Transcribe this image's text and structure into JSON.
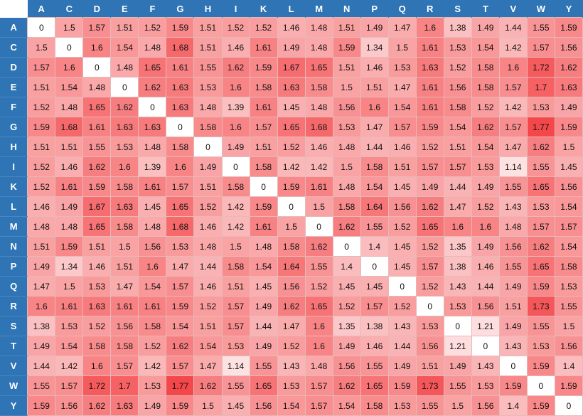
{
  "chart_data": {
    "type": "heatmap",
    "title": "",
    "xlabel": "",
    "ylabel": "",
    "row_labels": [
      "A",
      "C",
      "D",
      "E",
      "F",
      "G",
      "H",
      "I",
      "K",
      "L",
      "M",
      "N",
      "P",
      "Q",
      "R",
      "S",
      "T",
      "V",
      "W",
      "Y"
    ],
    "col_labels": [
      "A",
      "C",
      "D",
      "E",
      "F",
      "G",
      "H",
      "I",
      "K",
      "L",
      "M",
      "N",
      "P",
      "Q",
      "R",
      "S",
      "T",
      "V",
      "W",
      "Y"
    ],
    "values": [
      [
        0,
        1.5,
        1.57,
        1.51,
        1.52,
        1.59,
        1.51,
        1.52,
        1.52,
        1.46,
        1.48,
        1.51,
        1.49,
        1.47,
        1.6,
        1.38,
        1.49,
        1.44,
        1.55,
        1.59
      ],
      [
        1.5,
        0,
        1.6,
        1.54,
        1.48,
        1.68,
        1.51,
        1.46,
        1.61,
        1.49,
        1.48,
        1.59,
        1.34,
        1.5,
        1.61,
        1.53,
        1.54,
        1.42,
        1.57,
        1.56
      ],
      [
        1.57,
        1.6,
        0,
        1.48,
        1.65,
        1.61,
        1.55,
        1.62,
        1.59,
        1.67,
        1.65,
        1.51,
        1.46,
        1.53,
        1.63,
        1.52,
        1.58,
        1.6,
        1.72,
        1.62
      ],
      [
        1.51,
        1.54,
        1.48,
        0,
        1.62,
        1.63,
        1.53,
        1.6,
        1.58,
        1.63,
        1.58,
        1.5,
        1.51,
        1.47,
        1.61,
        1.56,
        1.58,
        1.57,
        1.7,
        1.63
      ],
      [
        1.52,
        1.48,
        1.65,
        1.62,
        0,
        1.63,
        1.48,
        1.39,
        1.61,
        1.45,
        1.48,
        1.56,
        1.6,
        1.54,
        1.61,
        1.58,
        1.52,
        1.42,
        1.53,
        1.49
      ],
      [
        1.59,
        1.68,
        1.61,
        1.63,
        1.63,
        0,
        1.58,
        1.6,
        1.57,
        1.65,
        1.68,
        1.53,
        1.47,
        1.57,
        1.59,
        1.54,
        1.62,
        1.57,
        1.77,
        1.59
      ],
      [
        1.51,
        1.51,
        1.55,
        1.53,
        1.48,
        1.58,
        0,
        1.49,
        1.51,
        1.52,
        1.46,
        1.48,
        1.44,
        1.46,
        1.52,
        1.51,
        1.54,
        1.47,
        1.62,
        1.5
      ],
      [
        1.52,
        1.46,
        1.62,
        1.6,
        1.39,
        1.6,
        1.49,
        0,
        1.58,
        1.42,
        1.42,
        1.5,
        1.58,
        1.51,
        1.57,
        1.57,
        1.53,
        1.14,
        1.55,
        1.45
      ],
      [
        1.52,
        1.61,
        1.59,
        1.58,
        1.61,
        1.57,
        1.51,
        1.58,
        0,
        1.59,
        1.61,
        1.48,
        1.54,
        1.45,
        1.49,
        1.44,
        1.49,
        1.55,
        1.65,
        1.56
      ],
      [
        1.46,
        1.49,
        1.67,
        1.63,
        1.45,
        1.65,
        1.52,
        1.42,
        1.59,
        0,
        1.5,
        1.58,
        1.64,
        1.56,
        1.62,
        1.47,
        1.52,
        1.43,
        1.53,
        1.54
      ],
      [
        1.48,
        1.48,
        1.65,
        1.58,
        1.48,
        1.68,
        1.46,
        1.42,
        1.61,
        1.5,
        0,
        1.62,
        1.55,
        1.52,
        1.65,
        1.6,
        1.6,
        1.48,
        1.57,
        1.57
      ],
      [
        1.51,
        1.59,
        1.51,
        1.5,
        1.56,
        1.53,
        1.48,
        1.5,
        1.48,
        1.58,
        1.62,
        0,
        1.4,
        1.45,
        1.52,
        1.35,
        1.49,
        1.56,
        1.62,
        1.54
      ],
      [
        1.49,
        1.34,
        1.46,
        1.51,
        1.6,
        1.47,
        1.44,
        1.58,
        1.54,
        1.64,
        1.55,
        1.4,
        0,
        1.45,
        1.57,
        1.38,
        1.46,
        1.55,
        1.65,
        1.58
      ],
      [
        1.47,
        1.5,
        1.53,
        1.47,
        1.54,
        1.57,
        1.46,
        1.51,
        1.45,
        1.56,
        1.52,
        1.45,
        1.45,
        0,
        1.52,
        1.43,
        1.44,
        1.49,
        1.59,
        1.53
      ],
      [
        1.6,
        1.61,
        1.63,
        1.61,
        1.61,
        1.59,
        1.52,
        1.57,
        1.49,
        1.62,
        1.65,
        1.52,
        1.57,
        1.52,
        0,
        1.53,
        1.56,
        1.51,
        1.73,
        1.55
      ],
      [
        1.38,
        1.53,
        1.52,
        1.56,
        1.58,
        1.54,
        1.51,
        1.57,
        1.44,
        1.47,
        1.6,
        1.35,
        1.38,
        1.43,
        1.53,
        0,
        1.21,
        1.49,
        1.55,
        1.5
      ],
      [
        1.49,
        1.54,
        1.58,
        1.58,
        1.52,
        1.62,
        1.54,
        1.53,
        1.49,
        1.52,
        1.6,
        1.49,
        1.46,
        1.44,
        1.56,
        1.21,
        0,
        1.43,
        1.53,
        1.56
      ],
      [
        1.44,
        1.42,
        1.6,
        1.57,
        1.42,
        1.57,
        1.47,
        1.14,
        1.55,
        1.43,
        1.48,
        1.56,
        1.55,
        1.49,
        1.51,
        1.49,
        1.43,
        0,
        1.59,
        1.4
      ],
      [
        1.55,
        1.57,
        1.72,
        1.7,
        1.53,
        1.77,
        1.62,
        1.55,
        1.65,
        1.53,
        1.57,
        1.62,
        1.65,
        1.59,
        1.73,
        1.55,
        1.53,
        1.59,
        0,
        1.59
      ],
      [
        1.59,
        1.56,
        1.62,
        1.63,
        1.49,
        1.59,
        1.5,
        1.45,
        1.56,
        1.54,
        1.57,
        1.54,
        1.58,
        1.53,
        1.55,
        1.5,
        1.56,
        1.4,
        1.59,
        0
      ]
    ],
    "colors": {
      "low": "#ffffff",
      "high": "#f4474a",
      "header_bg": "#2f74b5",
      "header_text": "#ffffff"
    },
    "legend": "none",
    "grid": true
  }
}
